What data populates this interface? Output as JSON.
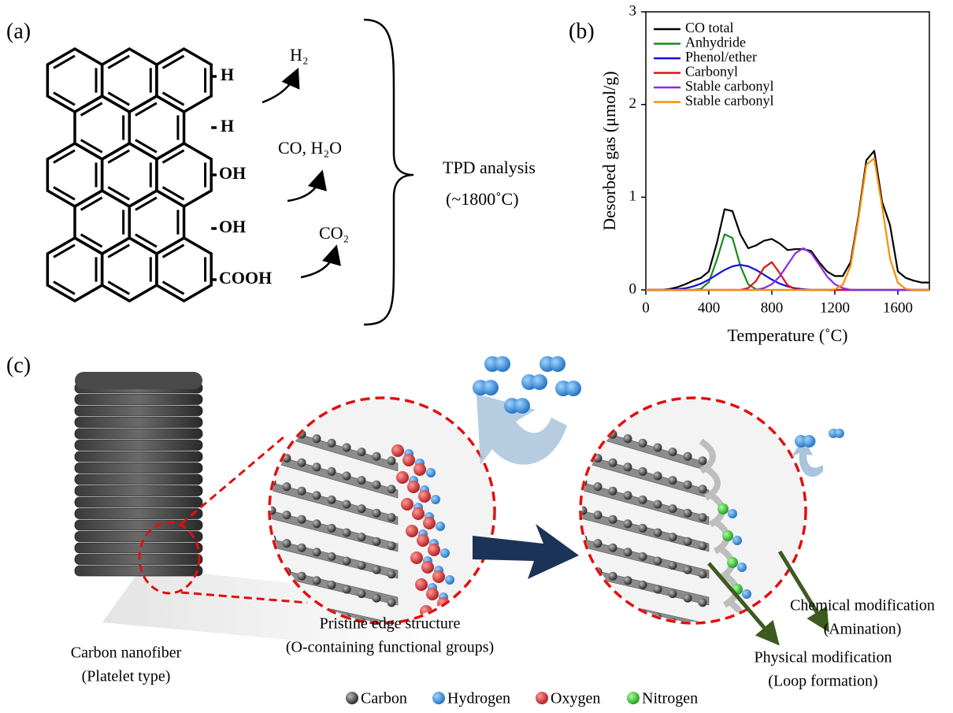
{
  "panel_labels": [
    "(a)",
    "(b)",
    "(c)"
  ],
  "scheme": {
    "groups": [
      "H",
      "H",
      "OH",
      "OH",
      "COOH"
    ],
    "products": [
      "H₂",
      "CO, H₂O",
      "CO₂"
    ],
    "analysis": [
      "TPD analysis",
      "(~1800˚C)"
    ]
  },
  "chart_data": {
    "type": "line",
    "x_label": "Temperature (˚C)",
    "y_label": "Desorbed gas (μmol/g)",
    "x": [
      0,
      50,
      100,
      150,
      200,
      250,
      300,
      350,
      400,
      450,
      500,
      550,
      600,
      650,
      700,
      750,
      800,
      850,
      900,
      950,
      1000,
      1050,
      1100,
      1150,
      1200,
      1250,
      1300,
      1350,
      1400,
      1450,
      1500,
      1550,
      1600,
      1650,
      1700,
      1750,
      1800
    ],
    "series": [
      {
        "name": "CO total",
        "color": "#000000",
        "values": [
          0,
          0,
          0,
          0.01,
          0.03,
          0.06,
          0.1,
          0.13,
          0.2,
          0.5,
          0.87,
          0.85,
          0.6,
          0.45,
          0.48,
          0.53,
          0.55,
          0.5,
          0.43,
          0.44,
          0.44,
          0.42,
          0.3,
          0.2,
          0.15,
          0.15,
          0.3,
          0.8,
          1.4,
          1.5,
          0.95,
          0.7,
          0.2,
          0.13,
          0.1,
          0.08,
          0.08
        ]
      },
      {
        "name": "Anhydride",
        "color": "#1a8a1a",
        "values": [
          0,
          0,
          0,
          0,
          0,
          0,
          0,
          0.011,
          0.085,
          0.32,
          0.6,
          0.56,
          0.26,
          0.06,
          0.007,
          0,
          0,
          0,
          0,
          0,
          0,
          0,
          0,
          0,
          0,
          0,
          0,
          0,
          0,
          0,
          0,
          0,
          0,
          0,
          0,
          0,
          0
        ]
      },
      {
        "name": "Phenol/ether",
        "color": "#1010e0",
        "values": [
          0,
          0,
          0,
          0,
          0.008,
          0.018,
          0.037,
          0.067,
          0.111,
          0.164,
          0.216,
          0.255,
          0.27,
          0.255,
          0.216,
          0.164,
          0.111,
          0.067,
          0.037,
          0.018,
          0.008,
          0,
          0,
          0,
          0,
          0,
          0,
          0,
          0,
          0,
          0,
          0,
          0,
          0,
          0,
          0,
          0
        ]
      },
      {
        "name": "Carbonyl",
        "color": "#e01010",
        "values": [
          0,
          0,
          0,
          0,
          0,
          0,
          0,
          0,
          0,
          0,
          0,
          0,
          0,
          0.02,
          0.097,
          0.24,
          0.3,
          0.18,
          0.05,
          0.008,
          0,
          0,
          0,
          0,
          0,
          0,
          0,
          0,
          0,
          0,
          0,
          0,
          0,
          0,
          0,
          0,
          0
        ]
      },
      {
        "name": "Stable carbonyl",
        "color": "#8a2be2",
        "values": [
          0,
          0,
          0,
          0,
          0,
          0,
          0,
          0,
          0,
          0,
          0,
          0,
          0,
          0,
          0,
          0.02,
          0.061,
          0.146,
          0.273,
          0.397,
          0.45,
          0.397,
          0.273,
          0.146,
          0.061,
          0.02,
          0,
          0,
          0,
          0,
          0,
          0,
          0,
          0,
          0,
          0,
          0
        ]
      },
      {
        "name": "Stable carbonyl",
        "color": "#ff8c00",
        "values": [
          0,
          0,
          0,
          0,
          0,
          0,
          0,
          0,
          0,
          0,
          0,
          0,
          0,
          0,
          0,
          0,
          0,
          0,
          0,
          0,
          0,
          0,
          0,
          0,
          0.007,
          0.055,
          0.26,
          0.77,
          1.35,
          1.42,
          0.9,
          0.34,
          0.077,
          0.011,
          0,
          0,
          0
        ]
      }
    ],
    "xlim": [
      0,
      1800
    ],
    "xticks": [
      0,
      400,
      800,
      1200,
      1600
    ],
    "ylim": [
      0,
      3
    ],
    "yticks": [
      0,
      1,
      2,
      3
    ],
    "legend": "upper left"
  },
  "illustration": {
    "captions": [
      "Carbon nanofiber",
      "(Platelet type)",
      "Pristine  edge structure",
      "(O-containing functional groups)",
      "Chemical modification",
      "(Amination)",
      "Physical modification",
      "(Loop formation)"
    ],
    "legend": [
      "Carbon",
      "Hydrogen",
      "Oxygen",
      "Nitrogen"
    ]
  }
}
